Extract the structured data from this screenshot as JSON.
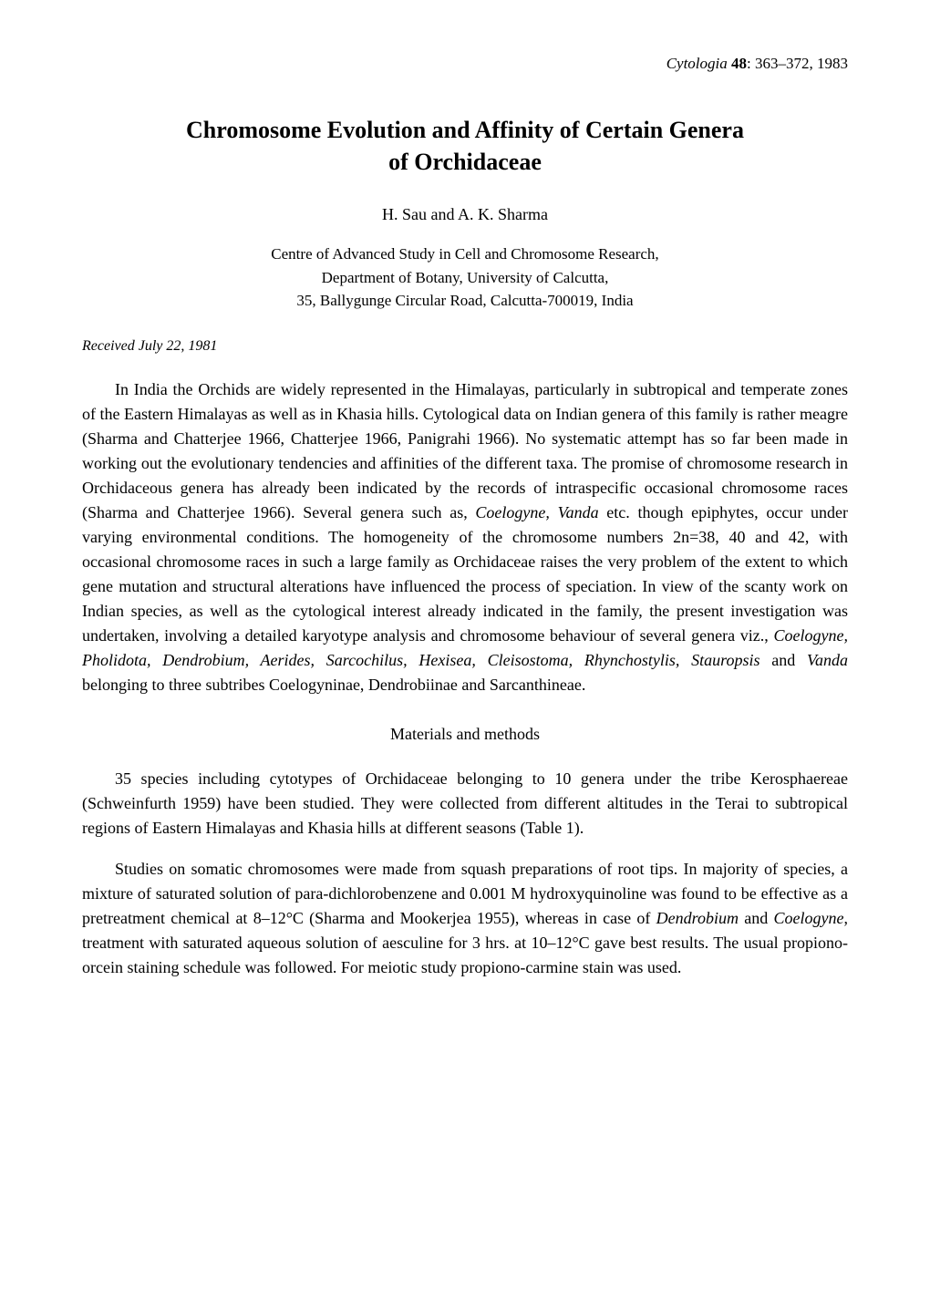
{
  "citation": {
    "journal_italic": "Cytologia ",
    "volume_bold": "48",
    "rest": ": 363–372, 1983"
  },
  "title_line1": "Chromosome Evolution and Affinity of Certain Genera",
  "title_line2": "of Orchidaceae",
  "authors": "H. Sau and A. K. Sharma",
  "affiliation_line1": "Centre of Advanced Study in Cell and Chromosome Research,",
  "affiliation_line2": "Department of Botany, University of Calcutta,",
  "affiliation_line3": "35, Ballygunge Circular Road, Calcutta-700019, India",
  "received": "Received July 22, 1981",
  "para1_a": "In India the Orchids are widely represented in the Himalayas, particularly in subtropical and temperate zones of the Eastern Himalayas as well as in Khasia hills. Cytological data on Indian genera of this family is rather meagre (Sharma and Chatterjee 1966, Chatterjee 1966, Panigrahi 1966). No systematic attempt has so far been made in working out the evolutionary tendencies and affinities of the different taxa. The promise of chromosome research in Orchidaceous genera has already been indicated by the records of intraspecific occasional chromosome races (Sharma and Chatterjee 1966). Several genera such as, ",
  "para1_i1": "Coelogyne, Vanda",
  "para1_b": " etc. though epiphytes, occur under varying environmental conditions. The homogeneity of the chromosome numbers 2n=38, 40 and 42, with occasional chromosome races in such a large family as Orchidaceae raises the very problem of the extent to which gene mutation and structural alterations have influenced the process of speciation. In view of the scanty work on Indian species, as well as the cytological interest already indicated in the family, the present investigation was undertaken, involving a detailed karyotype analysis and chromosome behaviour of several genera viz., ",
  "para1_i2": "Coelogyne, Pholidota, Dendrobium, Aerides, Sarcochilus, Hexisea, Cleisostoma, Rhynchostylis, Stauropsis",
  "para1_c": " and ",
  "para1_i3": "Vanda",
  "para1_d": " belonging to three subtribes Coelogyninae, Dendrobiinae and Sarcanthineae.",
  "section_heading": "Materials and methods",
  "para2": "35 species including cytotypes of Orchidaceae belonging to 10 genera under the tribe Kerosphaereae (Schweinfurth 1959) have been studied. They were collected from different altitudes in the Terai to subtropical regions of Eastern Himalayas and Khasia hills at different seasons (Table 1).",
  "para3_a": "Studies on somatic chromosomes were made from squash preparations of root tips. In majority of species, a mixture of saturated solution of para-dichlorobenzene and 0.001 M hydroxyquinoline was found to be effective as a pretreatment chemical at 8–12°C (Sharma and Mookerjea 1955), whereas in case of ",
  "para3_i1": "Dendrobium",
  "para3_b": " and ",
  "para3_i2": "Coelogyne",
  "para3_c": ", treatment with saturated aqueous solution of aesculine for 3 hrs. at 10–12°C gave best results. The usual propiono-orcein staining schedule was followed. For meiotic study propiono-carmine stain was used."
}
